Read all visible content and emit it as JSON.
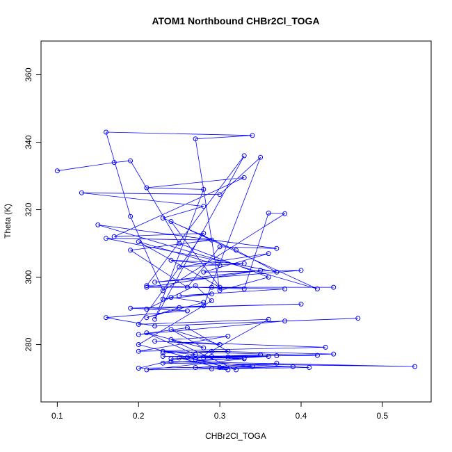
{
  "chart_data": {
    "type": "line",
    "title": "ATOM1 Northbound CHBr2Cl_TOGA",
    "xlabel": "CHBr2Cl_TOGA",
    "ylabel": "Theta (K)",
    "xlim": [
      0.08,
      0.56
    ],
    "ylim": [
      263,
      370
    ],
    "x_ticks": [
      "0.1",
      "0.2",
      "0.3",
      "0.4",
      "0.5"
    ],
    "y_ticks": [
      "280",
      "300",
      "320",
      "340",
      "360"
    ],
    "grid": false,
    "series_color": "#0000ff",
    "series": [
      {
        "marker": "open-circle",
        "points": [
          [
            0.1,
            331.5
          ],
          [
            0.17,
            334.0
          ],
          [
            0.19,
            334.5
          ],
          [
            0.25,
            310.0
          ],
          [
            0.36,
            300.0
          ],
          [
            0.3,
            296.0
          ],
          [
            0.27,
            341.0
          ],
          [
            0.34,
            342.0
          ],
          [
            0.16,
            343.0
          ],
          [
            0.19,
            318.0
          ],
          [
            0.23,
            296.0
          ],
          [
            0.38,
            318.8
          ],
          [
            0.36,
            319.0
          ],
          [
            0.33,
            296.5
          ],
          [
            0.21,
            297.5
          ],
          [
            0.33,
            336.0
          ],
          [
            0.22,
            287.5
          ],
          [
            0.28,
            326.0
          ],
          [
            0.21,
            326.5
          ],
          [
            0.33,
            329.5
          ],
          [
            0.17,
            312.0
          ],
          [
            0.28,
            313.0
          ],
          [
            0.2,
            286.0
          ],
          [
            0.36,
            287.5
          ],
          [
            0.27,
            275.5
          ],
          [
            0.33,
            275.8
          ],
          [
            0.21,
            272.5
          ],
          [
            0.41,
            273.2
          ],
          [
            0.24,
            275.0
          ],
          [
            0.54,
            273.5
          ],
          [
            0.23,
            274.5
          ],
          [
            0.36,
            276.5
          ],
          [
            0.28,
            276.0
          ],
          [
            0.33,
            276.0
          ],
          [
            0.23,
            276.5
          ],
          [
            0.42,
            276.8
          ],
          [
            0.23,
            278.0
          ],
          [
            0.29,
            276.5
          ],
          [
            0.35,
            277.0
          ],
          [
            0.26,
            276.2
          ],
          [
            0.37,
            276.7
          ],
          [
            0.31,
            276.3
          ],
          [
            0.24,
            275.8
          ],
          [
            0.44,
            277.2
          ],
          [
            0.29,
            278.0
          ],
          [
            0.23,
            277.5
          ],
          [
            0.31,
            278.0
          ],
          [
            0.26,
            285.0
          ],
          [
            0.2,
            283.0
          ],
          [
            0.38,
            287.0
          ],
          [
            0.47,
            287.8
          ],
          [
            0.22,
            285.5
          ],
          [
            0.16,
            288.0
          ],
          [
            0.26,
            290.0
          ],
          [
            0.19,
            290.8
          ],
          [
            0.4,
            292.0
          ],
          [
            0.25,
            291.0
          ],
          [
            0.21,
            288.0
          ],
          [
            0.28,
            292.5
          ],
          [
            0.24,
            294.0
          ],
          [
            0.23,
            293.5
          ],
          [
            0.29,
            295.0
          ],
          [
            0.25,
            294.5
          ],
          [
            0.38,
            296.5
          ],
          [
            0.29,
            297.0
          ],
          [
            0.44,
            297.0
          ],
          [
            0.21,
            297.0
          ],
          [
            0.35,
            302.0
          ],
          [
            0.22,
            298.5
          ],
          [
            0.4,
            302.0
          ],
          [
            0.28,
            301.5
          ],
          [
            0.36,
            307.0
          ],
          [
            0.25,
            303.0
          ],
          [
            0.33,
            304.0
          ],
          [
            0.24,
            305.0
          ],
          [
            0.3,
            303.5
          ],
          [
            0.2,
            310.5
          ],
          [
            0.3,
            297.0
          ],
          [
            0.24,
            316.5
          ],
          [
            0.42,
            296.5
          ],
          [
            0.15,
            315.5
          ],
          [
            0.37,
            308.5
          ],
          [
            0.3,
            309.0
          ],
          [
            0.26,
            297.0
          ],
          [
            0.19,
            308.0
          ],
          [
            0.29,
            311.0
          ],
          [
            0.16,
            311.5
          ],
          [
            0.37,
            301.5
          ],
          [
            0.32,
            308.0
          ],
          [
            0.23,
            317.5
          ],
          [
            0.28,
            321.0
          ],
          [
            0.13,
            325.0
          ],
          [
            0.3,
            324.5
          ],
          [
            0.35,
            335.5
          ],
          [
            0.28,
            291.5
          ],
          [
            0.21,
            290.5
          ],
          [
            0.27,
            297.5
          ],
          [
            0.29,
            293.0
          ],
          [
            0.2,
            280.0
          ],
          [
            0.32,
            272.5
          ],
          [
            0.24,
            281.5
          ],
          [
            0.31,
            282.5
          ],
          [
            0.2,
            278.0
          ],
          [
            0.43,
            279.2
          ],
          [
            0.22,
            281.0
          ],
          [
            0.3,
            280.0
          ],
          [
            0.24,
            284.5
          ],
          [
            0.28,
            279.0
          ],
          [
            0.21,
            283.5
          ],
          [
            0.27,
            277.0
          ],
          [
            0.2,
            273.0
          ],
          [
            0.34,
            273.5
          ],
          [
            0.25,
            276.0
          ],
          [
            0.31,
            272.5
          ],
          [
            0.27,
            273.2
          ],
          [
            0.37,
            274.5
          ],
          [
            0.29,
            272.8
          ],
          [
            0.39,
            273.5
          ],
          [
            0.3,
            273.2
          ]
        ]
      }
    ]
  }
}
